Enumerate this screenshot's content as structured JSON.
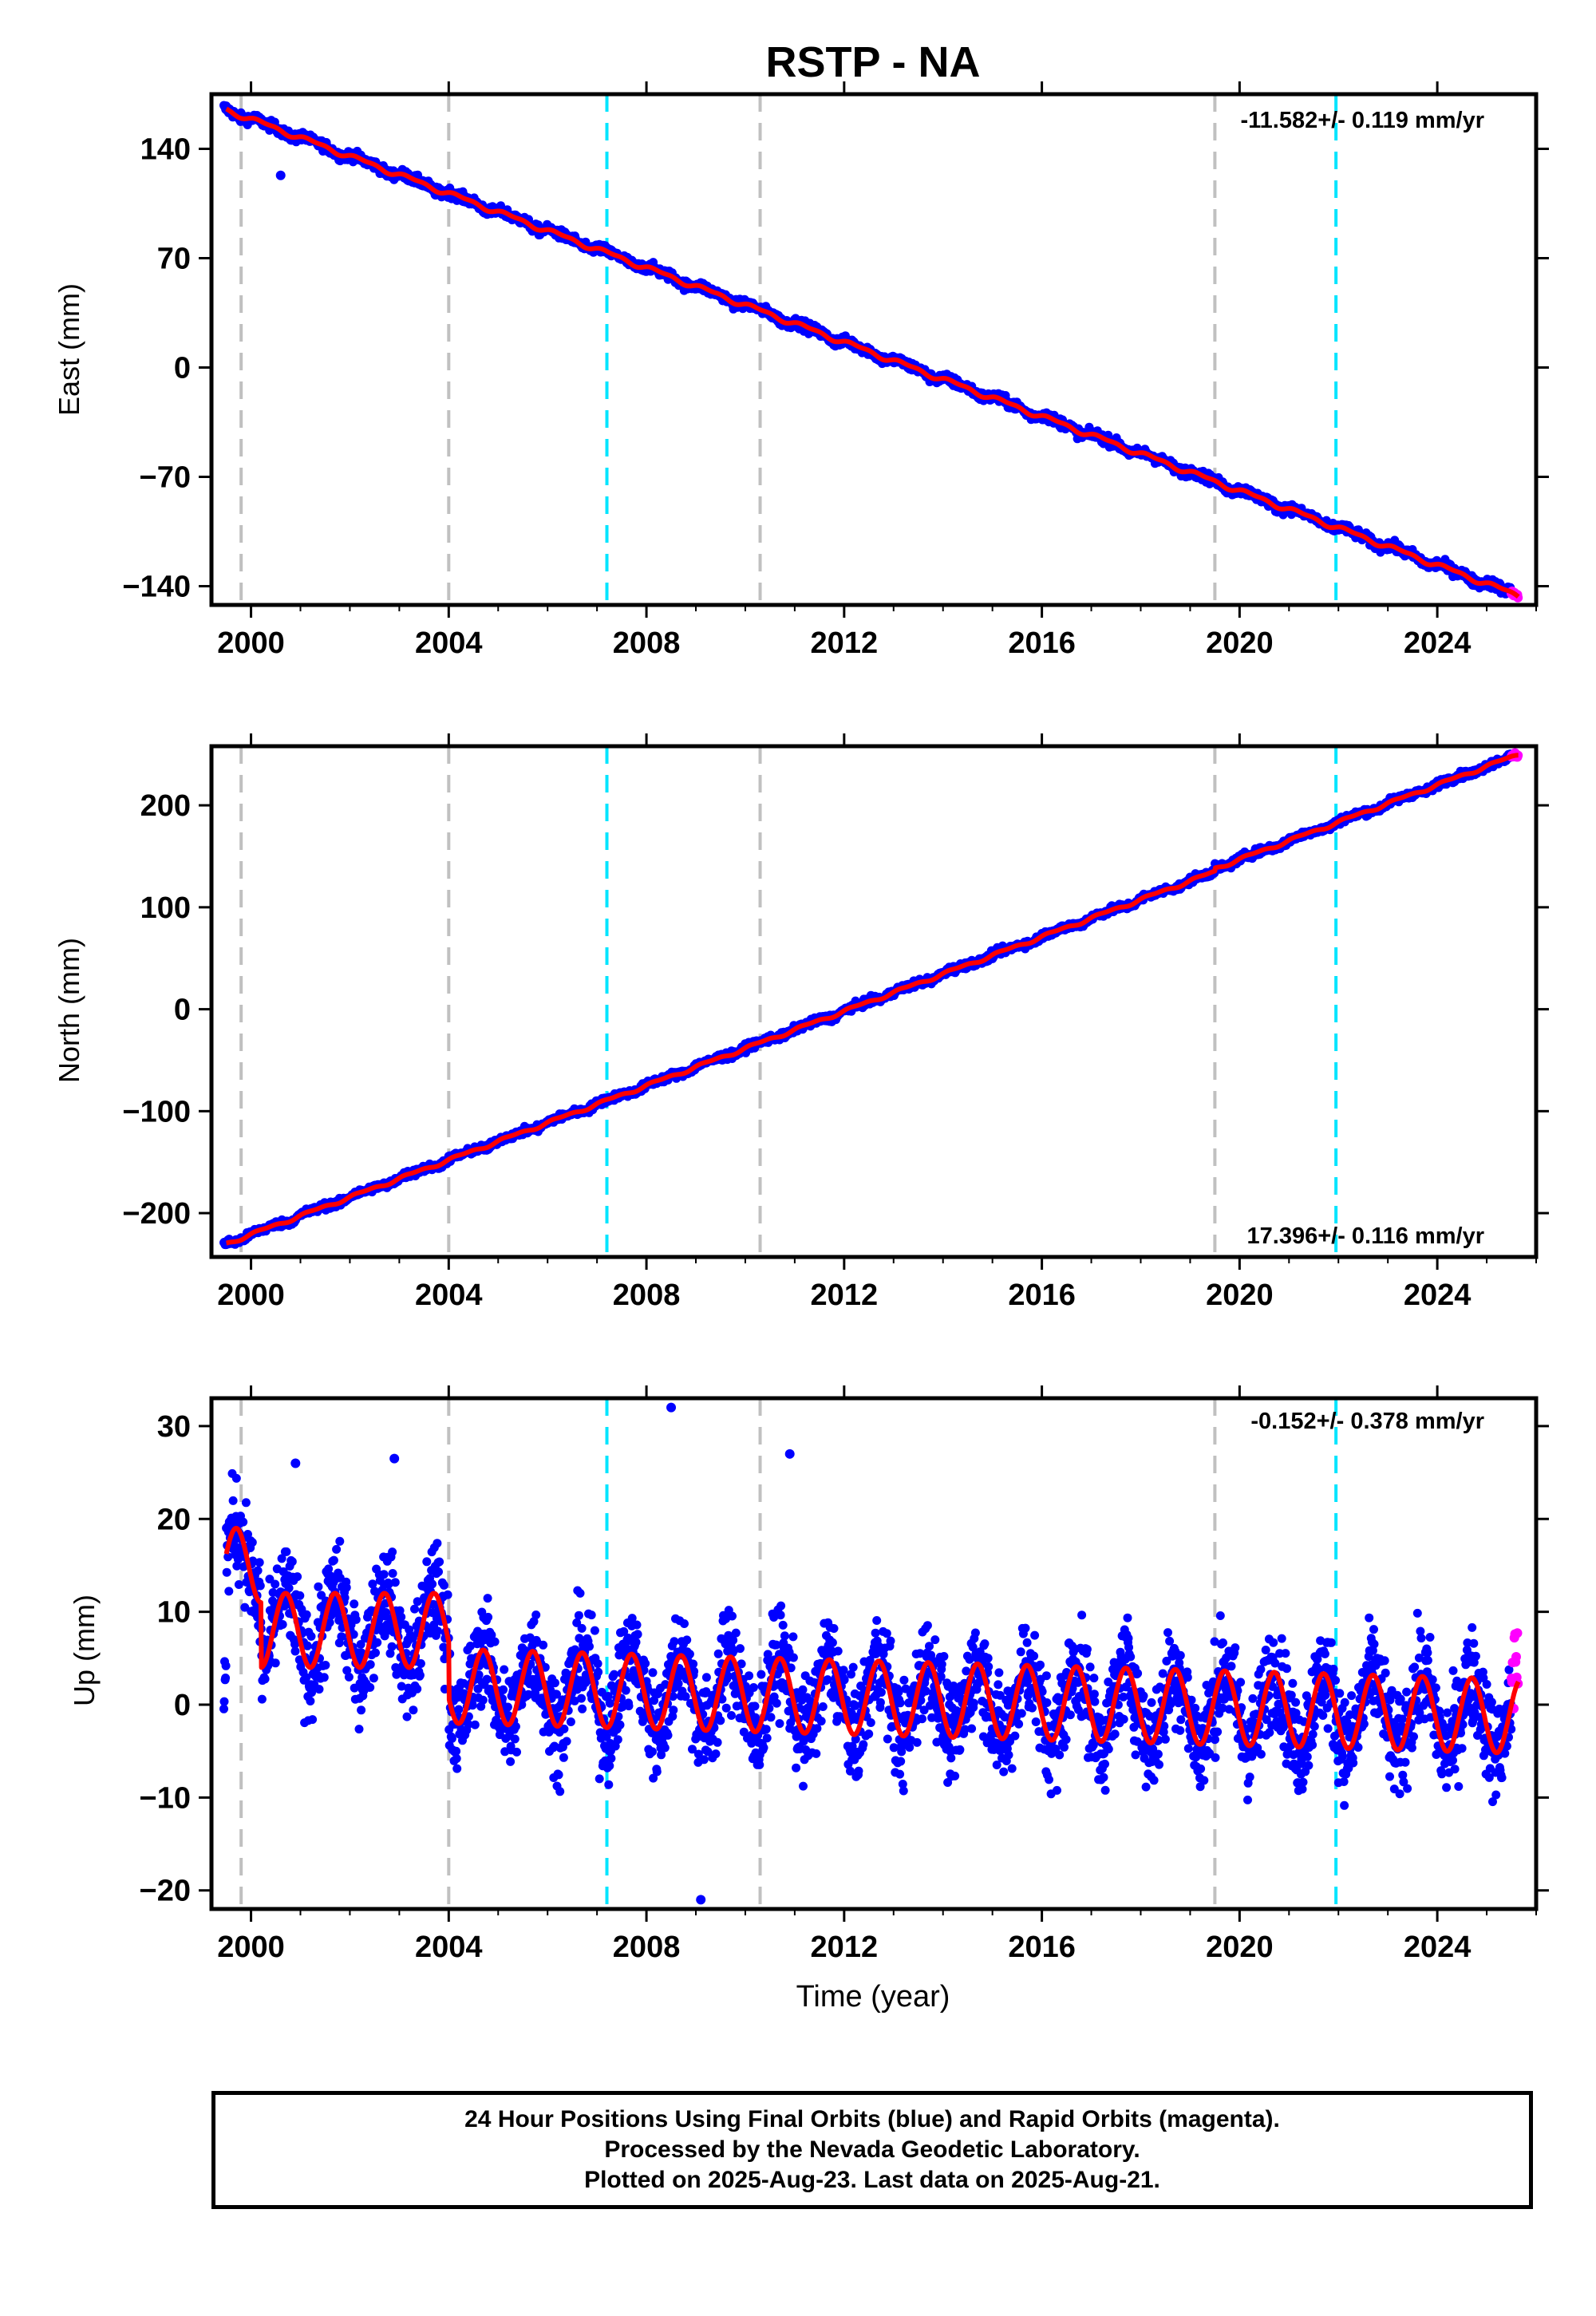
{
  "title": "RSTP - NA",
  "colors": {
    "final_orbits": "#0000ff",
    "rapid_orbits": "#ff00ff",
    "model": "#ff0000",
    "equipment_change_line": "#c0c0c0",
    "earthquake_line": "#00e5ff"
  },
  "shared": {
    "x_range": [
      1999.2,
      2026.0
    ],
    "x_ticks": [
      2000,
      2004,
      2008,
      2012,
      2016,
      2020,
      2024
    ],
    "x_tick_labels": [
      "2000",
      "2004",
      "2008",
      "2012",
      "2016",
      "2020",
      "2024"
    ],
    "x_label": "Time (year)",
    "gray_dashed_lines": [
      1999.8,
      2004.0,
      2010.3,
      2019.5
    ],
    "cyan_dashed_lines": [
      2007.2,
      2021.95
    ],
    "last_final_orbit_epoch": 2025.5,
    "last_data_epoch": 2025.64
  },
  "chart_data": [
    {
      "type": "scatter",
      "component": "east",
      "ylabel": "East (mm)",
      "ylim": [
        -152,
        175
      ],
      "y_ticks": [
        140,
        70,
        0,
        -70,
        -140
      ],
      "y_tick_labels": [
        "140",
        "70",
        "0",
        "−70",
        "−140"
      ],
      "rate": "-11.582+/- 0.119 mm/yr",
      "rate_position": "top-right",
      "trend": {
        "start_year": 1999.5,
        "start_value": 165,
        "end_year": 2025.64,
        "end_value": -146
      },
      "outliers": [
        {
          "x": 2000.6,
          "y": 123
        }
      ],
      "noise_amplitude": 2.2
    },
    {
      "type": "scatter",
      "component": "north",
      "ylabel": "North (mm)",
      "ylim": [
        -243,
        258
      ],
      "y_ticks": [
        200,
        100,
        0,
        -100,
        -200
      ],
      "y_tick_labels": [
        "200",
        "100",
        "0",
        "−100",
        "−200"
      ],
      "rate": "17.396+/- 0.116 mm/yr",
      "rate_position": "bottom-right",
      "trend": {
        "start_year": 1999.5,
        "start_value": -230,
        "end_year": 2025.64,
        "end_value": 247
      },
      "offsets": [
        {
          "year": 2019.5,
          "value": 12
        }
      ],
      "noise_amplitude": 2.5
    },
    {
      "type": "scatter",
      "component": "up",
      "ylabel": "Up (mm)",
      "ylim": [
        -22,
        33
      ],
      "y_ticks": [
        30,
        20,
        10,
        0,
        -10,
        -20
      ],
      "y_tick_labels": [
        "30",
        "20",
        "10",
        "0",
        "−10",
        "−20"
      ],
      "rate": "-0.152+/- 0.378 mm/yr",
      "rate_position": "top-right",
      "model": {
        "seasonal_amplitude": 4.0,
        "epoch_means": [
          {
            "from": 1999.5,
            "to": 2000.2,
            "mean": 15
          },
          {
            "from": 2000.2,
            "to": 2004.0,
            "mean": 8
          },
          {
            "from": 2004.0,
            "to": 2026.0,
            "mean": 2,
            "slope": -0.15
          }
        ]
      },
      "noise_sigma": 3.8,
      "outliers": [
        {
          "x": 2008.5,
          "y": 32
        },
        {
          "x": 2010.9,
          "y": 27
        },
        {
          "x": 2009.1,
          "y": -21
        },
        {
          "x": 2002.9,
          "y": 26.5
        },
        {
          "x": 2000.9,
          "y": 26
        }
      ]
    }
  ],
  "footer": {
    "line1": "24 Hour Positions Using Final Orbits (blue) and Rapid Orbits (magenta).",
    "line2": "Processed by the Nevada Geodetic Laboratory.",
    "line3": "Plotted on 2025-Aug-23. Last data on 2025-Aug-21."
  }
}
